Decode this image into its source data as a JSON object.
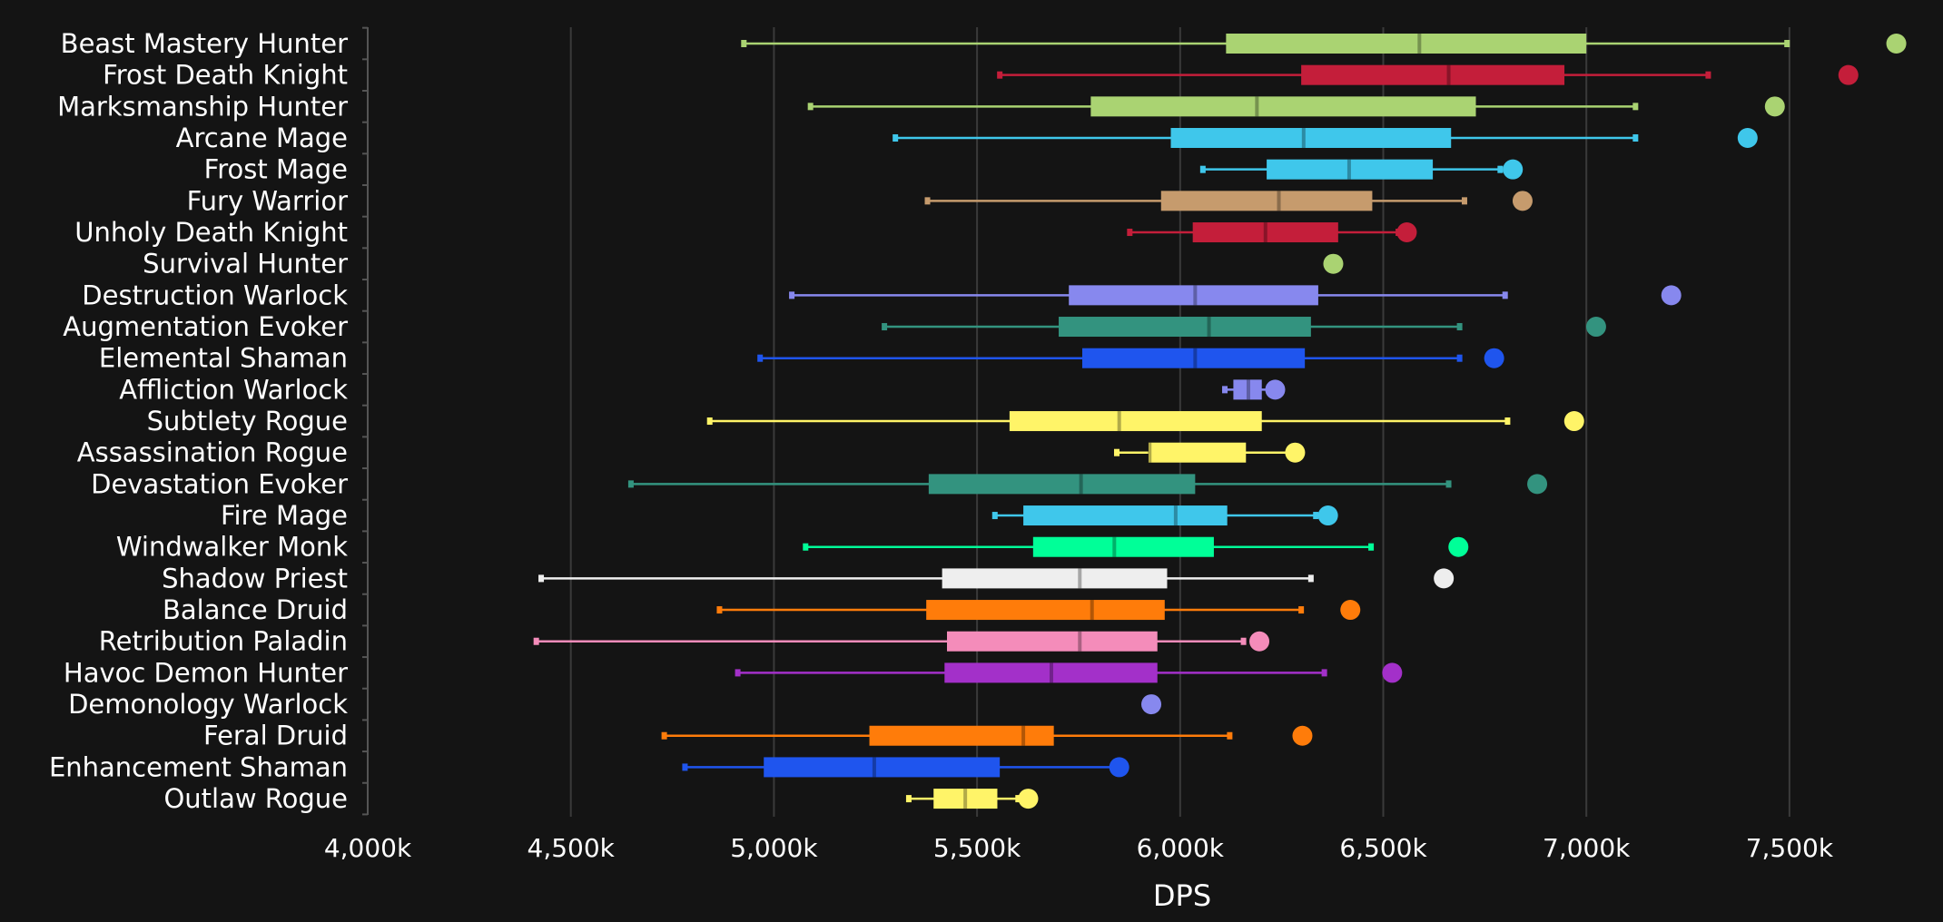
{
  "chart_data": {
    "type": "boxplot",
    "xlabel": "DPS",
    "ylabel": "",
    "xlim": [
      4000,
      7800
    ],
    "x_unit_suffix": "k",
    "x_ticks": [
      "4,000k",
      "4,500k",
      "5,000k",
      "5,500k",
      "6,000k",
      "6,500k",
      "7,000k",
      "7,500k"
    ],
    "x_tick_values": [
      4000,
      4500,
      5000,
      5500,
      6000,
      6500,
      7000,
      7500
    ],
    "grid": "vertical",
    "series": [
      {
        "name": "Beast Mastery Hunter",
        "color": "#aad372",
        "min": 4926,
        "q1": 6113,
        "median": 6589,
        "q3": 7000,
        "max": 7494,
        "top": 7763
      },
      {
        "name": "Frost Death Knight",
        "color": "#c41e3a",
        "min": 5556,
        "q1": 6298,
        "median": 6661,
        "q3": 6946,
        "max": 7300,
        "top": 7645
      },
      {
        "name": "Marksmanship Hunter",
        "color": "#aad372",
        "min": 5090,
        "q1": 5780,
        "median": 6189,
        "q3": 6728,
        "max": 7121,
        "top": 7464
      },
      {
        "name": "Arcane Mage",
        "color": "#3fc7eb",
        "min": 5299,
        "q1": 5977,
        "median": 6304,
        "q3": 6667,
        "max": 7121,
        "top": 7397
      },
      {
        "name": "Frost Mage",
        "color": "#3fc7eb",
        "min": 6056,
        "q1": 6213,
        "median": 6416,
        "q3": 6622,
        "max": 6788,
        "top": 6819
      },
      {
        "name": "Fury Warrior",
        "color": "#c69b6d",
        "min": 5378,
        "q1": 5953,
        "median": 6243,
        "q3": 6473,
        "max": 6700,
        "top": 6843
      },
      {
        "name": "Unholy Death Knight",
        "color": "#c41e3a",
        "min": 5876,
        "q1": 6031,
        "median": 6210,
        "q3": 6389,
        "max": 6537,
        "top": 6558
      },
      {
        "name": "Survival Hunter",
        "color": "#aad372",
        "min": 6377,
        "q1": 6377,
        "median": 6377,
        "q3": 6377,
        "max": 6377,
        "top": 6377
      },
      {
        "name": "Destruction Warlock",
        "color": "#8788ee",
        "min": 5044,
        "q1": 5726,
        "median": 6037,
        "q3": 6340,
        "max": 6800,
        "top": 7209
      },
      {
        "name": "Augmentation Evoker",
        "color": "#33937f",
        "min": 5272,
        "q1": 5701,
        "median": 6071,
        "q3": 6322,
        "max": 6688,
        "top": 7024
      },
      {
        "name": "Elemental Shaman",
        "color": "#1f55ee",
        "min": 4966,
        "q1": 5759,
        "median": 6037,
        "q3": 6307,
        "max": 6688,
        "top": 6773
      },
      {
        "name": "Affliction Warlock",
        "color": "#8788ee",
        "min": 6110,
        "q1": 6131,
        "median": 6168,
        "q3": 6201,
        "max": 6219,
        "top": 6234
      },
      {
        "name": "Subtlety Rogue",
        "color": "#fff468",
        "min": 4842,
        "q1": 5580,
        "median": 5850,
        "q3": 6201,
        "max": 6806,
        "top": 6970
      },
      {
        "name": "Assassination Rogue",
        "color": "#fff468",
        "min": 5844,
        "q1": 5922,
        "median": 5925,
        "q3": 6162,
        "max": 6283,
        "top": 6283
      },
      {
        "name": "Devastation Evoker",
        "color": "#33937f",
        "min": 4648,
        "q1": 5381,
        "median": 5756,
        "q3": 6037,
        "max": 6661,
        "top": 6879
      },
      {
        "name": "Fire Mage",
        "color": "#3fc7eb",
        "min": 5544,
        "q1": 5614,
        "median": 5989,
        "q3": 6116,
        "max": 6334,
        "top": 6364
      },
      {
        "name": "Windwalker Monk",
        "color": "#00ff98",
        "min": 5078,
        "q1": 5638,
        "median": 5838,
        "q3": 6083,
        "max": 6470,
        "top": 6685
      },
      {
        "name": "Shadow Priest",
        "color": "#eeeeee",
        "min": 4427,
        "q1": 5414,
        "median": 5753,
        "q3": 5968,
        "max": 6322,
        "top": 6649
      },
      {
        "name": "Balance Druid",
        "color": "#ff7c0a",
        "min": 4866,
        "q1": 5375,
        "median": 5783,
        "q3": 5962,
        "max": 6298,
        "top": 6419
      },
      {
        "name": "Retribution Paladin",
        "color": "#f48cba",
        "min": 4415,
        "q1": 5426,
        "median": 5753,
        "q3": 5944,
        "max": 6156,
        "top": 6195
      },
      {
        "name": "Havoc Demon Hunter",
        "color": "#a330c9",
        "min": 4911,
        "q1": 5420,
        "median": 5683,
        "q3": 5944,
        "max": 6355,
        "top": 6522
      },
      {
        "name": "Demonology Warlock",
        "color": "#8788ee",
        "min": 5929,
        "q1": 5929,
        "median": 5929,
        "q3": 5929,
        "max": 5929,
        "top": 5929
      },
      {
        "name": "Feral Druid",
        "color": "#ff7c0a",
        "min": 4730,
        "q1": 5235,
        "median": 5614,
        "q3": 5689,
        "max": 6122,
        "top": 6301
      },
      {
        "name": "Enhancement Shaman",
        "color": "#1f55ee",
        "min": 4781,
        "q1": 4975,
        "median": 5247,
        "q3": 5556,
        "max": 5838,
        "top": 5850
      },
      {
        "name": "Outlaw Rogue",
        "color": "#fff468",
        "min": 5332,
        "q1": 5393,
        "median": 5471,
        "q3": 5550,
        "max": 5601,
        "top": 5626
      }
    ]
  }
}
